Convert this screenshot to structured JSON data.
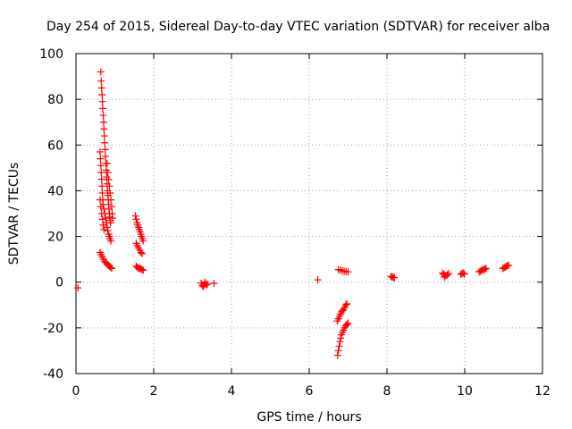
{
  "chart_data": {
    "type": "scatter",
    "title": "Day 254 of 2015, Sidereal Day-to-day VTEC variation (SDTVAR) for receiver alba",
    "xlabel": "GPS time / hours",
    "ylabel": "SDTVAR / TECUs",
    "xlim": [
      0,
      12
    ],
    "ylim": [
      -40,
      100
    ],
    "xticks": [
      0,
      2,
      4,
      6,
      8,
      10,
      12
    ],
    "yticks": [
      -40,
      -20,
      0,
      20,
      40,
      60,
      80,
      100
    ],
    "grid": true,
    "marker": "plus",
    "color": "#ff0000",
    "series": [
      {
        "name": "SDTVAR",
        "points": [
          [
            0.05,
            -2.5
          ],
          [
            0.64,
            92
          ],
          [
            0.65,
            88
          ],
          [
            0.66,
            85
          ],
          [
            0.67,
            82
          ],
          [
            0.68,
            79
          ],
          [
            0.69,
            76
          ],
          [
            0.7,
            73
          ],
          [
            0.71,
            70
          ],
          [
            0.72,
            67
          ],
          [
            0.73,
            64
          ],
          [
            0.74,
            61
          ],
          [
            0.75,
            58
          ],
          [
            0.76,
            55
          ],
          [
            0.77,
            52
          ],
          [
            0.78,
            49
          ],
          [
            0.79,
            46
          ],
          [
            0.8,
            43
          ],
          [
            0.81,
            40
          ],
          [
            0.82,
            38
          ],
          [
            0.83,
            36
          ],
          [
            0.84,
            34
          ],
          [
            0.85,
            32
          ],
          [
            0.86,
            30
          ],
          [
            0.87,
            28.5
          ],
          [
            0.88,
            27
          ],
          [
            0.89,
            26
          ],
          [
            0.62,
            57
          ],
          [
            0.63,
            54
          ],
          [
            0.64,
            51
          ],
          [
            0.65,
            48
          ],
          [
            0.66,
            45
          ],
          [
            0.67,
            42
          ],
          [
            0.68,
            39
          ],
          [
            0.69,
            36
          ],
          [
            0.7,
            34
          ],
          [
            0.72,
            32
          ],
          [
            0.74,
            30
          ],
          [
            0.76,
            28
          ],
          [
            0.78,
            26
          ],
          [
            0.8,
            24
          ],
          [
            0.82,
            22.5
          ],
          [
            0.84,
            21
          ],
          [
            0.86,
            20
          ],
          [
            0.88,
            19
          ],
          [
            0.9,
            18
          ],
          [
            0.8,
            52
          ],
          [
            0.82,
            48
          ],
          [
            0.84,
            45
          ],
          [
            0.86,
            42
          ],
          [
            0.88,
            39
          ],
          [
            0.9,
            36
          ],
          [
            0.92,
            33
          ],
          [
            0.93,
            30
          ],
          [
            0.94,
            28
          ],
          [
            0.62,
            36
          ],
          [
            0.64,
            33
          ],
          [
            0.66,
            30
          ],
          [
            0.68,
            27.5
          ],
          [
            0.7,
            25
          ],
          [
            0.72,
            23
          ],
          [
            0.62,
            13
          ],
          [
            0.65,
            12
          ],
          [
            0.68,
            11
          ],
          [
            0.71,
            10
          ],
          [
            0.74,
            9
          ],
          [
            0.77,
            8.5
          ],
          [
            0.8,
            8
          ],
          [
            0.83,
            7.5
          ],
          [
            0.86,
            7
          ],
          [
            0.89,
            6.5
          ],
          [
            0.92,
            6
          ],
          [
            1.53,
            29
          ],
          [
            1.55,
            27.5
          ],
          [
            1.57,
            26
          ],
          [
            1.59,
            25
          ],
          [
            1.61,
            24
          ],
          [
            1.63,
            23
          ],
          [
            1.65,
            22
          ],
          [
            1.67,
            21
          ],
          [
            1.69,
            20
          ],
          [
            1.71,
            19
          ],
          [
            1.73,
            18
          ],
          [
            1.55,
            17
          ],
          [
            1.58,
            16
          ],
          [
            1.61,
            15
          ],
          [
            1.64,
            14
          ],
          [
            1.67,
            13
          ],
          [
            1.7,
            12.5
          ],
          [
            1.55,
            7
          ],
          [
            1.58,
            6.5
          ],
          [
            1.61,
            6.2
          ],
          [
            1.64,
            6
          ],
          [
            1.67,
            5.8
          ],
          [
            1.7,
            5.5
          ],
          [
            1.73,
            5.2
          ],
          [
            3.22,
            -0.5
          ],
          [
            3.25,
            -1.5
          ],
          [
            3.28,
            -2
          ],
          [
            3.3,
            -1
          ],
          [
            3.32,
            0
          ],
          [
            3.35,
            -1.2
          ],
          [
            3.38,
            -0.8
          ],
          [
            3.55,
            -0.5
          ],
          [
            6.22,
            1
          ],
          [
            6.75,
            5.5
          ],
          [
            6.8,
            5.3
          ],
          [
            6.85,
            5.0
          ],
          [
            6.9,
            4.8
          ],
          [
            6.95,
            4.6
          ],
          [
            7.0,
            4.5
          ],
          [
            6.72,
            -17
          ],
          [
            6.75,
            -16
          ],
          [
            6.78,
            -15
          ],
          [
            6.8,
            -14
          ],
          [
            6.83,
            -13
          ],
          [
            6.86,
            -12.5
          ],
          [
            6.88,
            -12
          ],
          [
            6.91,
            -11
          ],
          [
            6.94,
            -10
          ],
          [
            6.97,
            -9.5
          ],
          [
            6.73,
            -32
          ],
          [
            6.75,
            -30
          ],
          [
            6.77,
            -28
          ],
          [
            6.79,
            -26
          ],
          [
            6.81,
            -24.5
          ],
          [
            6.83,
            -23
          ],
          [
            6.85,
            -22
          ],
          [
            6.88,
            -21
          ],
          [
            6.91,
            -20
          ],
          [
            6.94,
            -19
          ],
          [
            6.97,
            -18.5
          ],
          [
            7.0,
            -18
          ],
          [
            8.1,
            2.5
          ],
          [
            8.13,
            2.3
          ],
          [
            8.16,
            2.1
          ],
          [
            8.19,
            2.0
          ],
          [
            9.43,
            4
          ],
          [
            9.46,
            3.5
          ],
          [
            9.49,
            3
          ],
          [
            9.52,
            2.8
          ],
          [
            9.55,
            3.2
          ],
          [
            9.58,
            3.8
          ],
          [
            9.48,
            2.2
          ],
          [
            9.9,
            3.5
          ],
          [
            9.93,
            3.8
          ],
          [
            9.96,
            4.0
          ],
          [
            9.99,
            3.6
          ],
          [
            10.37,
            4.5
          ],
          [
            10.4,
            4.8
          ],
          [
            10.43,
            5.1
          ],
          [
            10.46,
            5.4
          ],
          [
            10.49,
            5.6
          ],
          [
            10.52,
            5.8
          ],
          [
            10.55,
            6
          ],
          [
            10.98,
            6
          ],
          [
            11.01,
            6.3
          ],
          [
            11.04,
            6.6
          ],
          [
            11.07,
            6.9
          ],
          [
            11.1,
            7.2
          ],
          [
            11.13,
            7.4
          ]
        ]
      }
    ]
  }
}
